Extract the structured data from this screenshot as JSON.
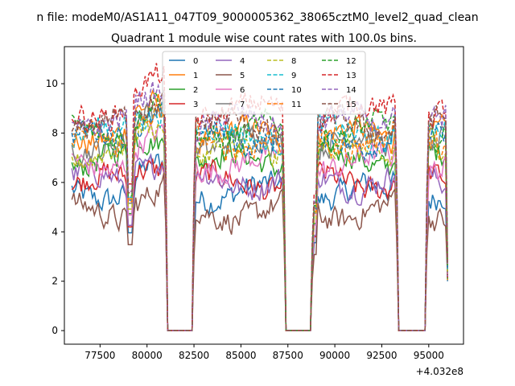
{
  "chart_data": {
    "type": "line",
    "suptitle": "n file: modeM0/AS1A11_047T09_9000005362_38065cztM0_level2_quad_clean",
    "title": "Quadrant 1 module wise count rates with 100.0s bins.",
    "xlabel": "",
    "ylabel": "",
    "x_offset_label": "+4.032e8",
    "xlim": [
      75600,
      96850
    ],
    "ylim": [
      -0.55,
      11.5
    ],
    "xticks": [
      77500,
      80000,
      82500,
      85000,
      87500,
      90000,
      92500,
      95000
    ],
    "xtick_labels": [
      "77500",
      "80000",
      "82500",
      "85000",
      "87500",
      "90000",
      "92500",
      "95000"
    ],
    "yticks": [
      0,
      2,
      4,
      6,
      8,
      10
    ],
    "ytick_labels": [
      "0",
      "2",
      "4",
      "6",
      "8",
      "10"
    ],
    "x_range": [
      76000,
      96000
    ],
    "gaps": [
      [
        81100,
        82400
      ],
      [
        87400,
        88700
      ],
      [
        93400,
        94800
      ]
    ],
    "dips": [
      [
        79100,
        3.6
      ],
      [
        88900,
        3.2
      ]
    ],
    "legend_position": "top-center",
    "legend_columns": 4,
    "grid": false,
    "series": [
      {
        "name": "0",
        "color": "#1f77b4",
        "style": "solid",
        "base": 5.6
      },
      {
        "name": "1",
        "color": "#ff7f0e",
        "style": "solid",
        "base": 7.9
      },
      {
        "name": "2",
        "color": "#2ca02c",
        "style": "solid",
        "base": 6.9
      },
      {
        "name": "3",
        "color": "#d62728",
        "style": "solid",
        "base": 6.0
      },
      {
        "name": "4",
        "color": "#9467bd",
        "style": "solid",
        "base": 6.1
      },
      {
        "name": "5",
        "color": "#8c564b",
        "style": "solid",
        "base": 4.8
      },
      {
        "name": "6",
        "color": "#e377c2",
        "style": "solid",
        "base": 6.8
      },
      {
        "name": "7",
        "color": "#7f7f7f",
        "style": "solid",
        "base": 7.6
      },
      {
        "name": "8",
        "color": "#bcbd22",
        "style": "dashed",
        "base": 7.2
      },
      {
        "name": "9",
        "color": "#17becf",
        "style": "dashed",
        "base": 8.0
      },
      {
        "name": "10",
        "color": "#1f77b4",
        "style": "dashed",
        "base": 7.8
      },
      {
        "name": "11",
        "color": "#ff7f0e",
        "style": "dashed",
        "base": 7.7
      },
      {
        "name": "12",
        "color": "#2ca02c",
        "style": "dashed",
        "base": 8.1
      },
      {
        "name": "13",
        "color": "#d62728",
        "style": "dashed",
        "base": 8.9
      },
      {
        "name": "14",
        "color": "#9467bd",
        "style": "dashed",
        "base": 8.4
      },
      {
        "name": "15",
        "color": "#8c564b",
        "style": "dashed",
        "base": 8.3
      }
    ]
  }
}
